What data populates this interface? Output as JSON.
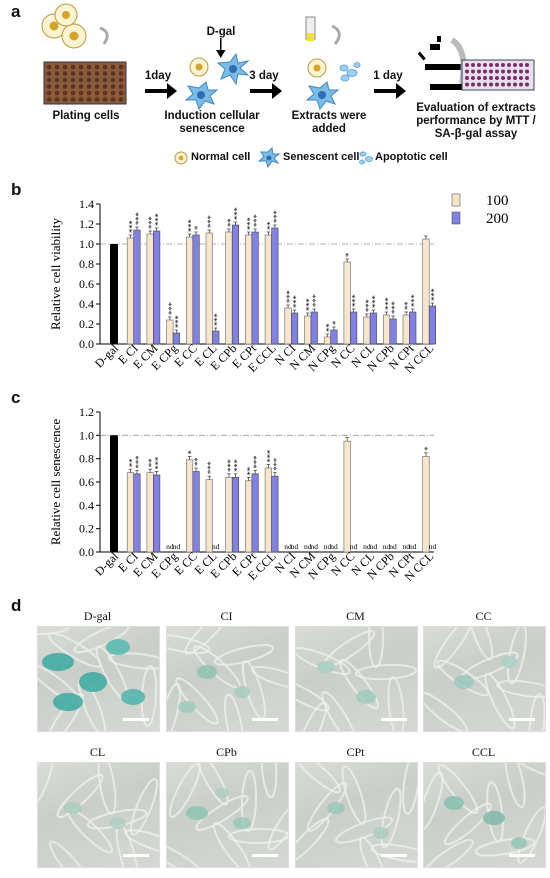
{
  "panels": {
    "a": "a",
    "b": "b",
    "c": "c",
    "d": "d"
  },
  "flow": {
    "dgal": "D-gal",
    "step1": "1day",
    "step2": "3 day",
    "step3": "1 day",
    "label1": "Plating cells",
    "label2a": "Induction cellular",
    "label2b": "senescence",
    "label3a": "Extracts were",
    "label3b": "added",
    "label4a": "Evaluation of extracts",
    "label4b": "performance by MTT  /",
    "label4c": "SA-β-gal assay"
  },
  "legend_cells": {
    "normal": "Normal cell",
    "senescent": "Senescent cell",
    "apoptotic": "Apoptotic cell"
  },
  "colors": {
    "s100": "#f7e6cc",
    "s200": "#8080e6",
    "dgal": "#000000",
    "ref_line": "#9a9a9a"
  },
  "chart_data": [
    {
      "type": "bar",
      "ylabel": "Relative cell viability",
      "ylim": [
        0,
        1.4
      ],
      "yticks": [
        "0.0",
        "0.2",
        "0.4",
        "0.6",
        "0.8",
        "1.0",
        "1.2",
        "1.4"
      ],
      "categories": [
        "D-gal",
        "E CI",
        "E CM",
        "E CPg",
        "E CC",
        "E CL",
        "E CPb",
        "E CPt",
        "E CCL",
        "N CI",
        "N CM",
        "N CPg",
        "N CC",
        "N CL",
        "N CPb",
        "N CPt",
        "N CCL"
      ],
      "dgal_value": 1.0,
      "series": [
        {
          "name": "100",
          "values": [
            null,
            1.06,
            1.1,
            0.24,
            1.07,
            1.11,
            1.12,
            1.09,
            1.09,
            0.36,
            0.28,
            0.07,
            0.82,
            0.27,
            0.29,
            0.29,
            1.05
          ]
        },
        {
          "name": "200",
          "values": [
            null,
            1.14,
            1.13,
            0.11,
            1.09,
            0.13,
            1.19,
            1.12,
            1.16,
            0.31,
            0.32,
            0.14,
            0.32,
            0.31,
            0.25,
            0.32,
            0.38
          ]
        }
      ],
      "sig100": [
        "",
        "***",
        "***",
        "***",
        "***",
        "***",
        "**",
        "***",
        "**",
        "***",
        "***",
        "**",
        "*",
        "***",
        "***",
        "**",
        ""
      ],
      "sig200": [
        "",
        "***",
        "***",
        "***",
        "*",
        "***",
        "***",
        "***",
        "***",
        "***",
        "***",
        "*",
        "***",
        "***",
        "***",
        "***",
        "***"
      ]
    },
    {
      "type": "bar",
      "ylabel": "Relative cell senescence",
      "ylim": [
        0,
        1.2
      ],
      "yticks": [
        "0.0",
        "0.2",
        "0.4",
        "0.6",
        "0.8",
        "1.0",
        "1.2"
      ],
      "categories": [
        "D-gal",
        "E CI",
        "E CM",
        "E CPg",
        "E CC",
        "E CL",
        "E CPb",
        "E CPt",
        "E CCL",
        "N CI",
        "N CM",
        "N CPg",
        "N CC",
        "N CL",
        "N CPb",
        "N CPt",
        "N CCL"
      ],
      "dgal_value": 1.0,
      "series": [
        {
          "name": "100",
          "values": [
            null,
            0.68,
            0.68,
            null,
            0.79,
            0.62,
            0.64,
            0.61,
            0.72,
            null,
            null,
            null,
            0.95,
            null,
            null,
            null,
            0.82
          ]
        },
        {
          "name": "200",
          "values": [
            null,
            0.67,
            0.66,
            null,
            0.69,
            null,
            0.64,
            0.67,
            0.65,
            null,
            null,
            null,
            null,
            null,
            null,
            null,
            null
          ]
        }
      ],
      "sig100": [
        "",
        "**",
        "**",
        "",
        "*",
        "***",
        "***",
        "**",
        "***",
        "",
        "",
        "",
        "",
        "",
        "",
        "",
        "*"
      ],
      "sig200": [
        "",
        "***",
        "***",
        "",
        "**",
        "",
        "***",
        "***",
        "***",
        "",
        "",
        "",
        "",
        "",
        "",
        "",
        ""
      ],
      "nd_label": "nd"
    }
  ],
  "legend_series": [
    "100",
    "200"
  ],
  "micrographs": {
    "row1": [
      "D-gal",
      "CI",
      "CM",
      "CC"
    ],
    "row2": [
      "CL",
      "CPb",
      "CPt",
      "CCL"
    ]
  }
}
